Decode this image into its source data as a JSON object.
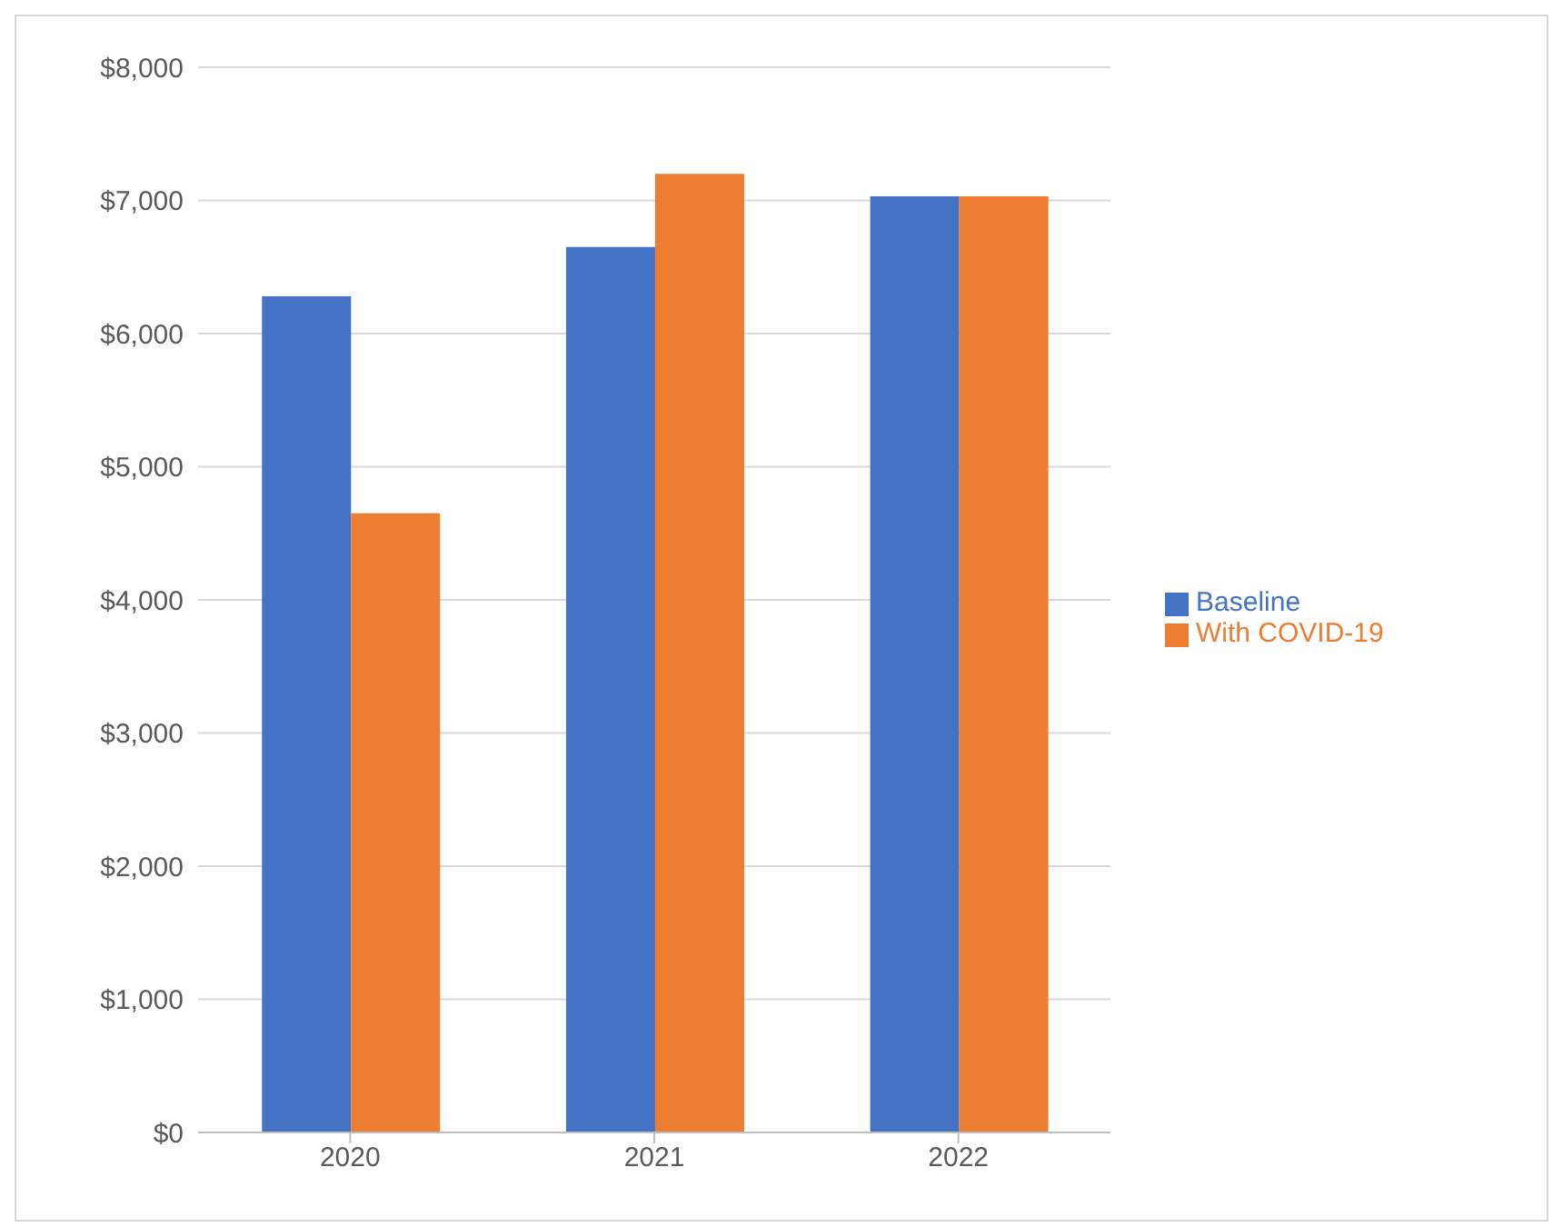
{
  "chart_data": {
    "type": "bar",
    "categories": [
      "2020",
      "2021",
      "2022"
    ],
    "series": [
      {
        "name": "Baseline",
        "color": "#4472c4",
        "values": [
          6280,
          6650,
          7030
        ]
      },
      {
        "name": "With COVID-19",
        "color": "#ed7d31",
        "values": [
          4650,
          7200,
          7030
        ]
      }
    ],
    "ylim": [
      0,
      8000
    ],
    "yticks": [
      {
        "value": 0,
        "label": "$0"
      },
      {
        "value": 1000,
        "label": "$1,000"
      },
      {
        "value": 2000,
        "label": "$2,000"
      },
      {
        "value": 3000,
        "label": "$3,000"
      },
      {
        "value": 4000,
        "label": "$4,000"
      },
      {
        "value": 5000,
        "label": "$5,000"
      },
      {
        "value": 6000,
        "label": "$6,000"
      },
      {
        "value": 7000,
        "label": "$7,000"
      },
      {
        "value": 8000,
        "label": "$8,000"
      }
    ],
    "grid": "y",
    "legend": "right"
  }
}
